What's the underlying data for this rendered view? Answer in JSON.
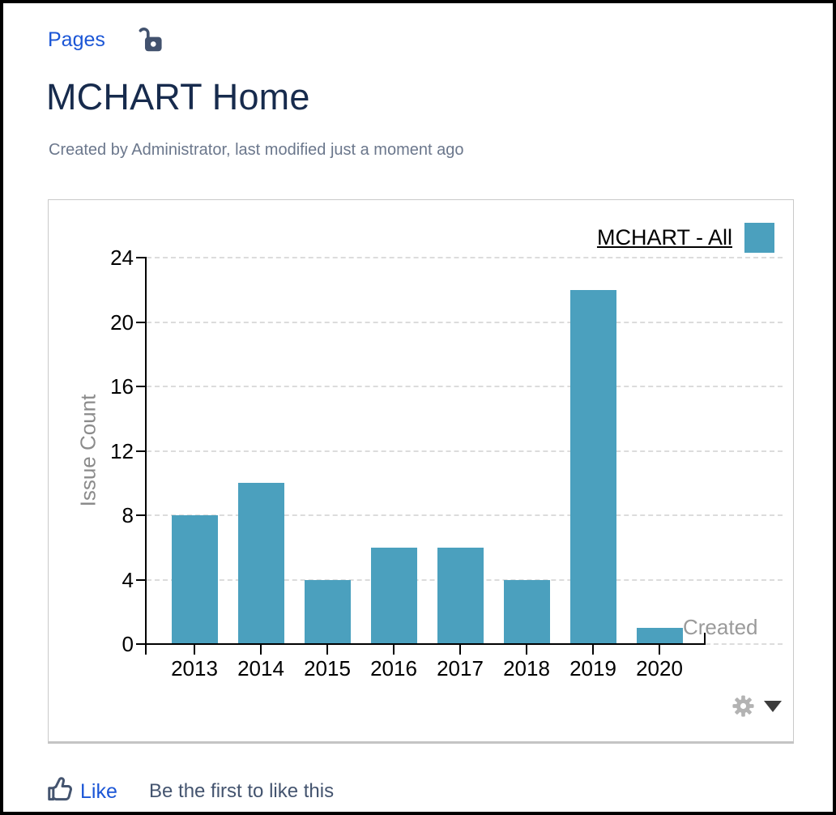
{
  "header": {
    "breadcrumb": "Pages",
    "title": "MCHART Home",
    "byline": "Created by Administrator, last modified just a moment ago"
  },
  "icons": {
    "unlock": "unlock-icon",
    "settings": "gear-icon",
    "caret": "caret-down-icon",
    "thumbs_up": "thumbs-up-icon"
  },
  "colors": {
    "link_blue": "#1B56D6",
    "title_navy": "#172B4D",
    "bar_teal": "#4BA0BE",
    "gridline": "#dcdcdc",
    "muted_text": "#8b8b8b"
  },
  "chart_data": {
    "type": "bar",
    "title": "",
    "legend": {
      "label": "MCHART - All",
      "position": "top-right"
    },
    "categories": [
      "2013",
      "2014",
      "2015",
      "2016",
      "2017",
      "2018",
      "2019",
      "2020"
    ],
    "values": [
      8,
      10,
      4,
      6,
      6,
      4,
      22,
      1
    ],
    "ylabel": "Issue Count",
    "xlabel": "",
    "x_axis_end_annotation": "Created",
    "yticks": [
      0,
      4,
      8,
      12,
      16,
      20,
      24
    ],
    "ylim": [
      0,
      24
    ],
    "grid": "horizontal-dashed",
    "bar_color": "#4BA0BE"
  },
  "footer": {
    "like_label": "Like",
    "like_hint": "Be the first to like this"
  }
}
